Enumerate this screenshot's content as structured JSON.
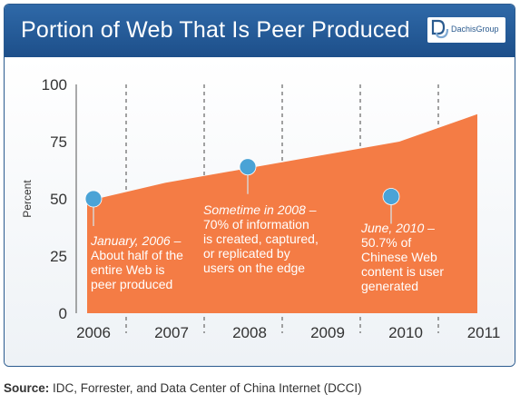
{
  "header": {
    "title": "Portion of Web That Is Peer Produced",
    "logo_text": "DachisGroup"
  },
  "source": {
    "label": "Source:",
    "text": " IDC, Forrester, and Data Center of China Internet (DCCI)"
  },
  "colors": {
    "header": "#1f5591",
    "area": "#f47c45",
    "marker": "#4aa3d6",
    "grid": "#8a8a8a"
  },
  "chart_data": {
    "type": "area",
    "x": [
      2006,
      2007,
      2008,
      2009,
      2010,
      2011
    ],
    "values": [
      49,
      57,
      63,
      69,
      75,
      87
    ],
    "xlabel": "",
    "ylabel": "Percent",
    "ylim": [
      0,
      100
    ],
    "yticks": [
      0,
      25,
      50,
      75,
      100
    ],
    "xticks": [
      "2006",
      "2007",
      "2008",
      "2009",
      "2010",
      "2011"
    ],
    "grid": "vertical-dashed",
    "annotations": [
      {
        "x": 2006,
        "y": 50,
        "lines": [
          "January, 2006 –",
          "About half of the",
          "entire Web is",
          "peer produced"
        ],
        "italic_lines": 1
      },
      {
        "x": 2008,
        "y": 64,
        "lines": [
          "Sometime in 2008 –",
          "70% of information",
          "is created, captured,",
          "or replicated by",
          "users on the edge"
        ],
        "italic_lines": 1
      },
      {
        "x": 2010,
        "y": 51,
        "lines": [
          "June, 2010 –",
          "50.7% of",
          "Chinese Web",
          "content is user",
          "generated"
        ],
        "italic_lines": 1
      }
    ]
  }
}
